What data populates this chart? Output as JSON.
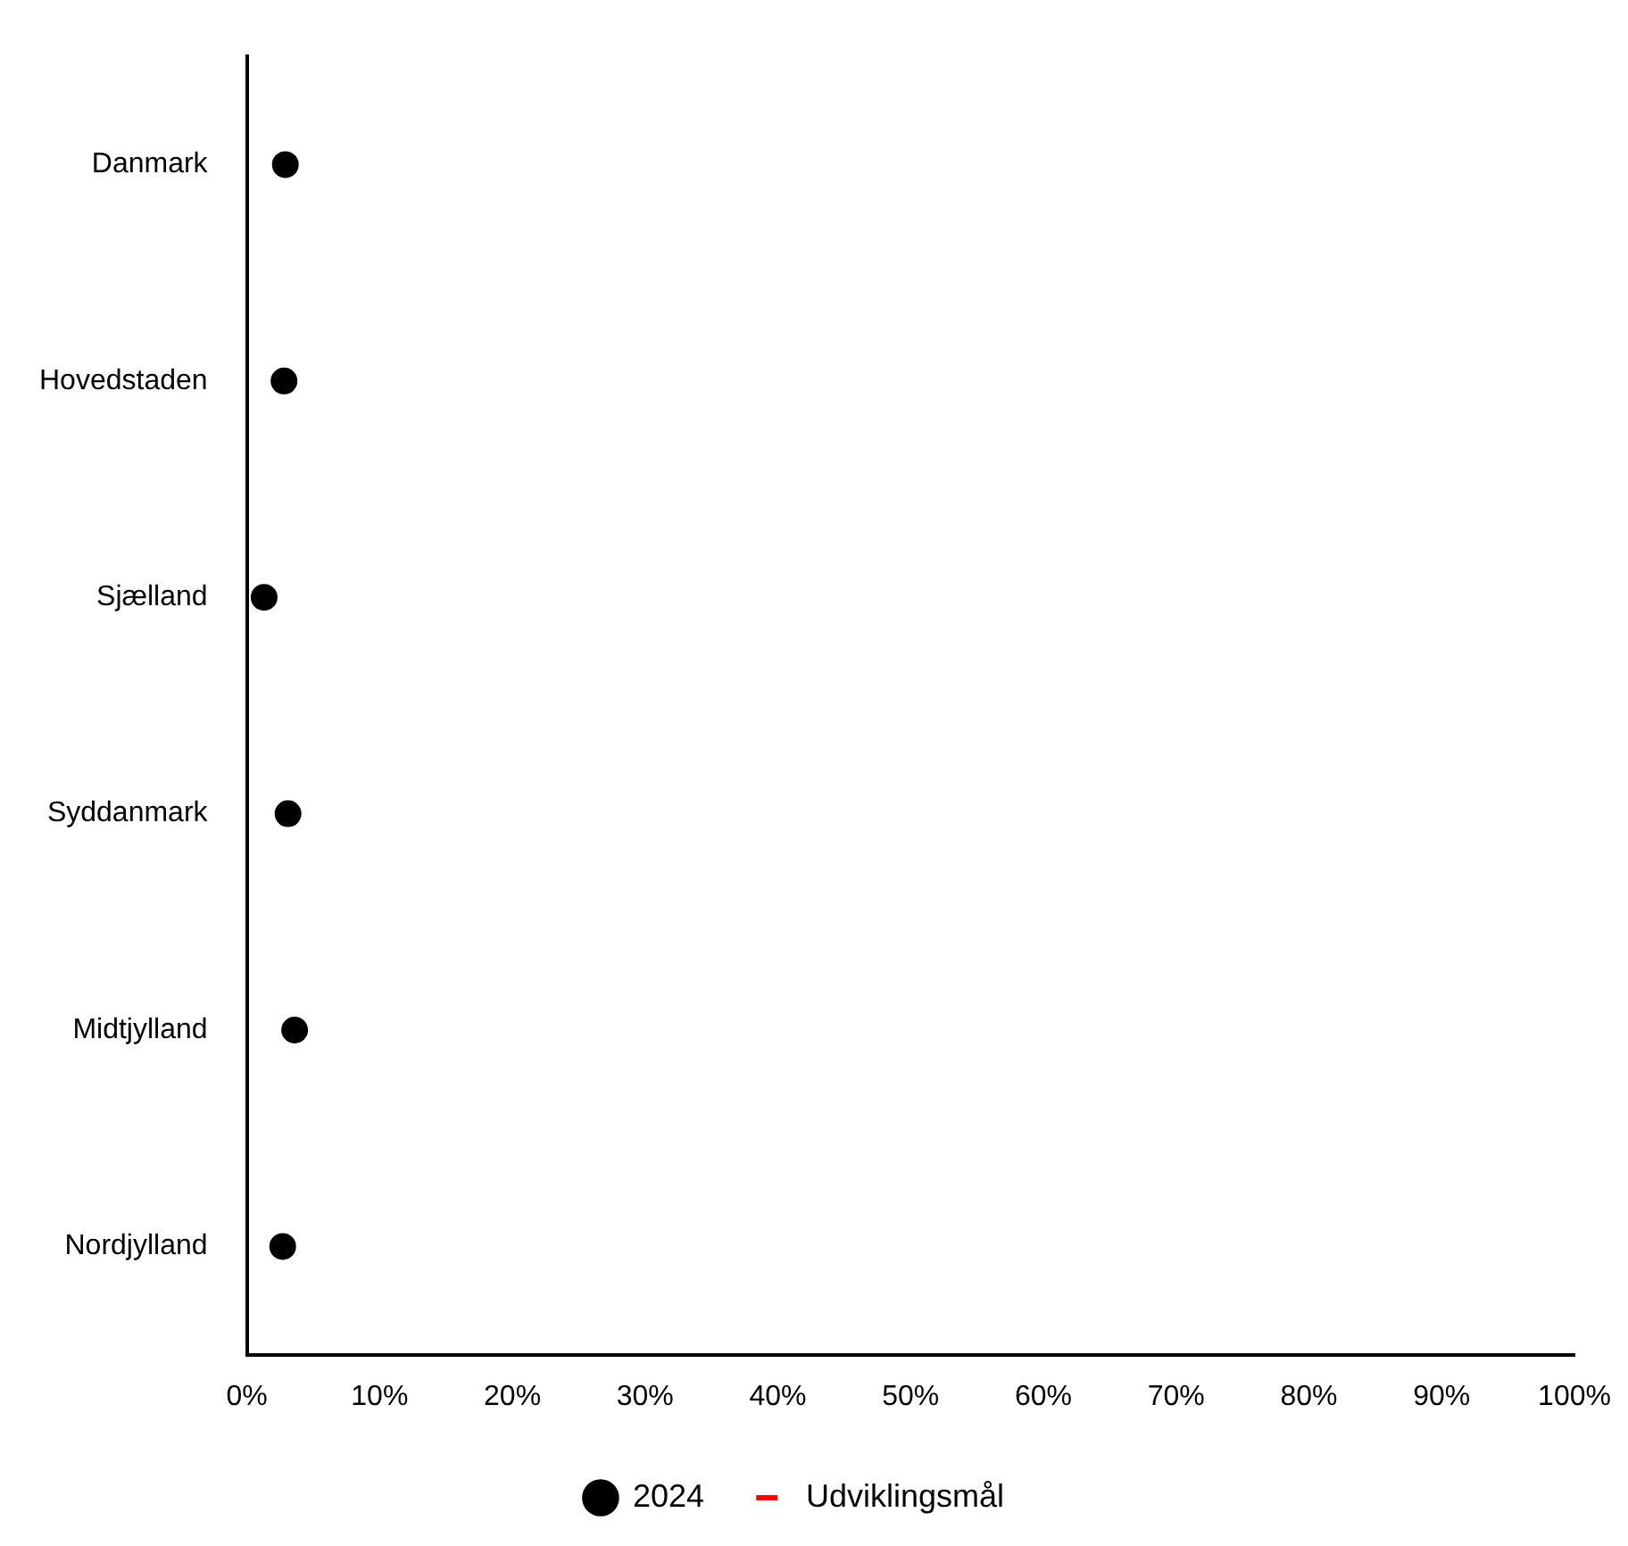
{
  "chart_data": {
    "type": "scatter",
    "orientation": "horizontal",
    "categories": [
      "Danmark",
      "Hovedstaden",
      "Sjælland",
      "Syddanmark",
      "Midtjylland",
      "Nordjylland"
    ],
    "series": [
      {
        "name": "2024",
        "type": "scatter",
        "color": "#000000",
        "marker": "circle",
        "values": [
          2.9,
          2.8,
          1.3,
          3.1,
          3.6,
          2.7
        ]
      },
      {
        "name": "Udviklingsmål",
        "type": "line",
        "color": "#ff0000",
        "line_style": "dashed",
        "marker": "none",
        "values": [
          null,
          null,
          null,
          null,
          null,
          null
        ]
      }
    ],
    "xlim": [
      0,
      100
    ],
    "xticks": [
      {
        "value": 0,
        "label": "0%"
      },
      {
        "value": 10,
        "label": "10%"
      },
      {
        "value": 20,
        "label": "20%"
      },
      {
        "value": 30,
        "label": "30%"
      },
      {
        "value": 40,
        "label": "40%"
      },
      {
        "value": 50,
        "label": "50%"
      },
      {
        "value": 60,
        "label": "60%"
      },
      {
        "value": 70,
        "label": "70%"
      },
      {
        "value": 80,
        "label": "80%"
      },
      {
        "value": 90,
        "label": "90%"
      },
      {
        "value": 100,
        "label": "100%"
      }
    ],
    "legend": "bottom"
  }
}
